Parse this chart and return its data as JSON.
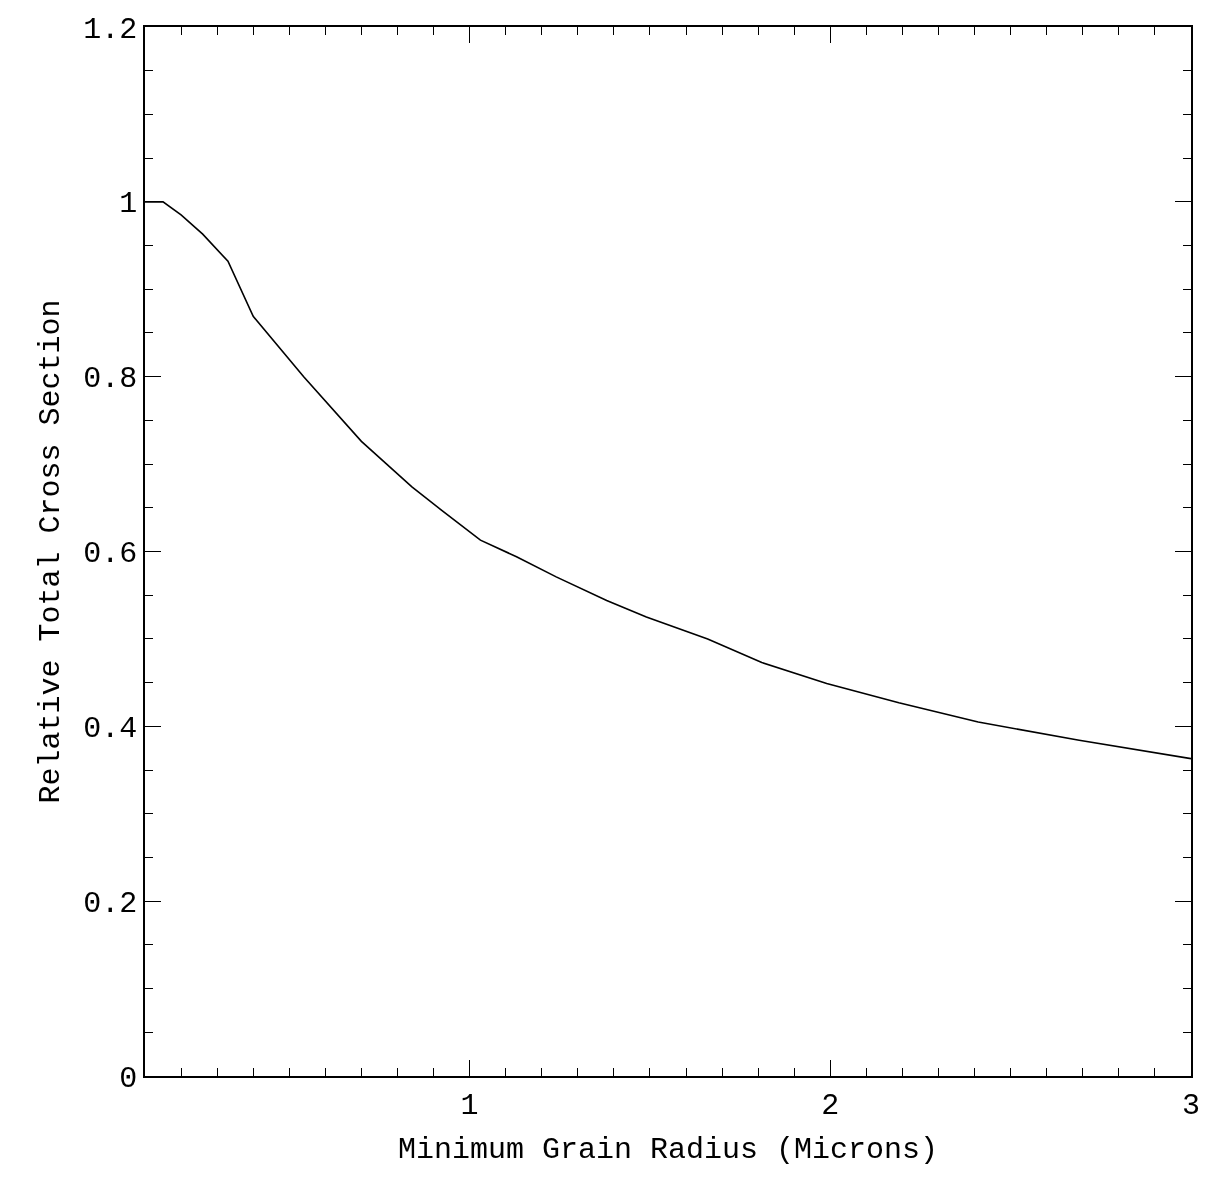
{
  "chart_data": {
    "type": "line",
    "xlabel": "Minimum Grain Radius (Microns)",
    "ylabel": "Relative Total Cross Section",
    "x": [
      0.1,
      0.15,
      0.2,
      0.26,
      0.33,
      0.4,
      0.54,
      0.7,
      0.77,
      0.84,
      0.92,
      1.03,
      1.13,
      1.24,
      1.38,
      1.49,
      1.66,
      1.81,
      1.99,
      2.19,
      2.41,
      2.69,
      3.0
    ],
    "series": [
      {
        "color": "#000000",
        "values": [
          1.0,
          1.0,
          0.985,
          0.963,
          0.932,
          0.869,
          0.8,
          0.726,
          0.7,
          0.674,
          0.648,
          0.613,
          0.594,
          0.571,
          0.544,
          0.525,
          0.5,
          0.473,
          0.449,
          0.427,
          0.405,
          0.384,
          0.363
        ]
      }
    ],
    "xlim": [
      0.1,
      3
    ],
    "xticks": [
      1,
      2,
      3
    ],
    "ylim": [
      0,
      1.2
    ],
    "yticks": [
      0,
      0.2,
      0.4,
      0.6,
      0.8,
      1,
      1.2
    ],
    "marker": "none",
    "line_style": "solid"
  }
}
